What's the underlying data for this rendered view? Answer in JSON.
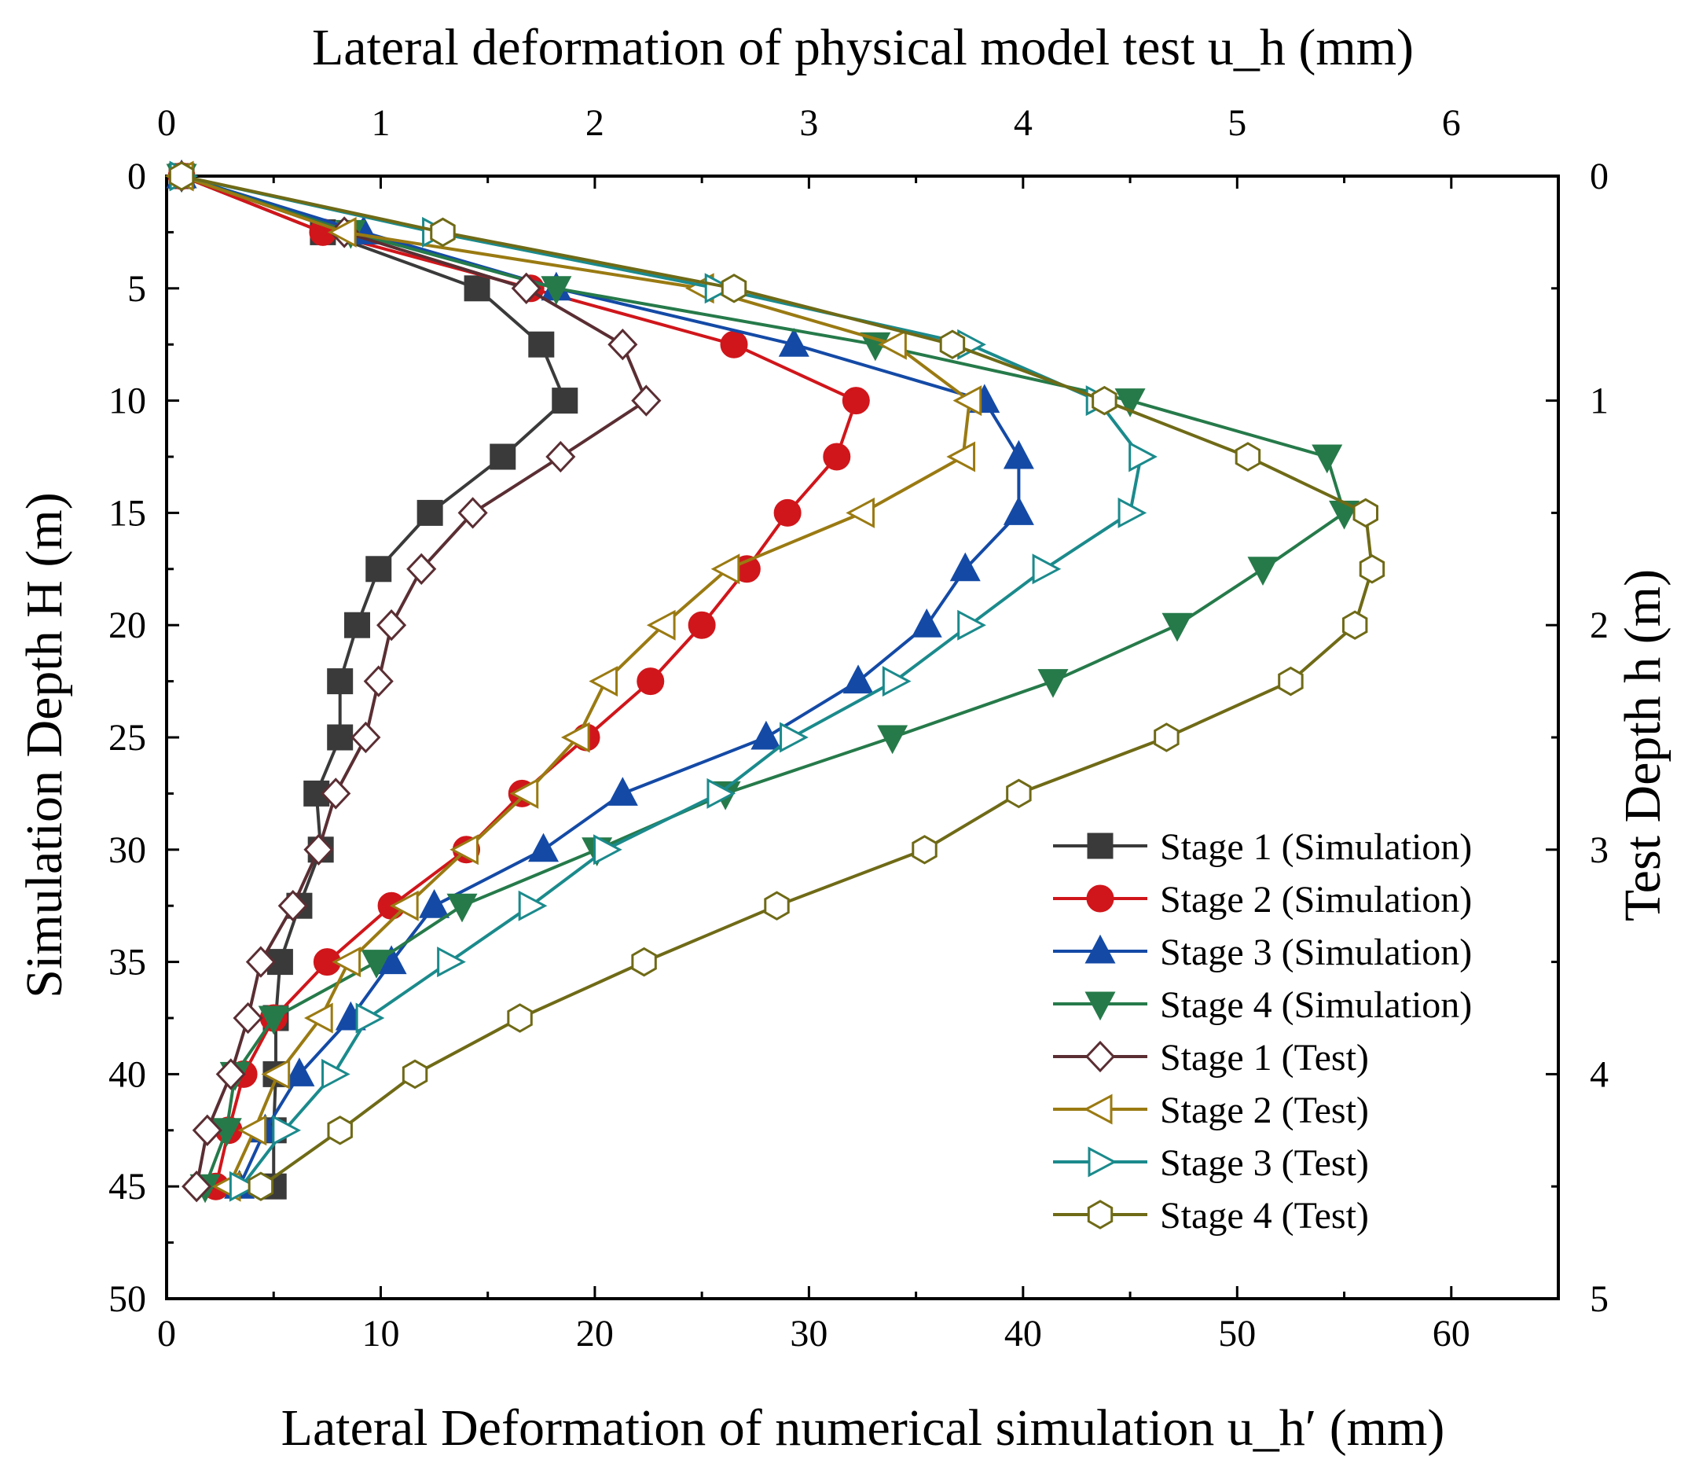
{
  "chart_data": {
    "type": "line",
    "axes": {
      "bottom": {
        "label": "Lateral Deformation of numerical simulation u_h′ (mm)",
        "range": [
          0,
          65
        ],
        "ticks": [
          "0",
          "10",
          "20",
          "30",
          "40",
          "50",
          "60"
        ]
      },
      "top": {
        "label": "Lateral deformation of physical model test u_h (mm)",
        "range": [
          0,
          6.5
        ],
        "ticks": [
          "0",
          "1",
          "2",
          "3",
          "4",
          "5",
          "6"
        ]
      },
      "left": {
        "label": "Simulation Depth H (m)",
        "range": [
          0,
          50
        ],
        "inverted": true,
        "ticks": [
          "0",
          "5",
          "10",
          "15",
          "20",
          "25",
          "30",
          "35",
          "40",
          "45",
          "50"
        ]
      },
      "right": {
        "label": "Test Depth h (m)",
        "range": [
          0,
          5
        ],
        "inverted": true,
        "ticks": [
          "0",
          "1",
          "2",
          "3",
          "4",
          "5"
        ]
      }
    },
    "legend_position": "bottom-right",
    "grid": false,
    "depths": [
      0,
      2.5,
      5,
      7.5,
      10,
      12.5,
      15,
      17.5,
      20,
      22.5,
      25,
      27.5,
      30,
      32.5,
      35,
      37.5,
      40,
      42.5,
      45
    ],
    "series": [
      {
        "name": "Stage 1 (Simulation)",
        "axis": "simulation",
        "color": "#3a3a3a",
        "marker": "square",
        "filled": true,
        "values": [
          0.7,
          7.3,
          14.5,
          17.5,
          18.6,
          15.7,
          12.3,
          9.9,
          8.9,
          8.1,
          8.1,
          7.0,
          7.2,
          6.2,
          5.3,
          5.1,
          5.1,
          5.0,
          5.0
        ]
      },
      {
        "name": "Stage 2 (Simulation)",
        "axis": "simulation",
        "color": "#d0161b",
        "marker": "circle",
        "filled": true,
        "values": [
          0.7,
          7.3,
          17.0,
          26.5,
          32.2,
          31.3,
          29.0,
          27.1,
          25.0,
          22.6,
          19.6,
          16.6,
          14.0,
          10.5,
          7.5,
          5.0,
          3.6,
          2.9,
          2.3
        ]
      },
      {
        "name": "Stage 3 (Simulation)",
        "axis": "simulation",
        "color": "#144aa6",
        "marker": "triangle-up",
        "filled": true,
        "values": [
          0.7,
          9.2,
          18.2,
          29.3,
          38.2,
          39.8,
          39.8,
          37.3,
          35.5,
          32.3,
          28.0,
          21.3,
          17.6,
          12.5,
          10.5,
          8.6,
          6.2,
          4.6,
          3.4
        ]
      },
      {
        "name": "Stage 4 (Simulation)",
        "axis": "simulation",
        "color": "#267a4a",
        "marker": "triangle-down",
        "filled": true,
        "values": [
          0.7,
          8.6,
          18.2,
          33.1,
          45.0,
          54.2,
          55.0,
          51.2,
          47.2,
          41.4,
          33.9,
          26.1,
          20.1,
          13.8,
          9.8,
          5.0,
          3.2,
          2.8,
          1.8
        ]
      },
      {
        "name": "Stage 1 (Test)",
        "axis": "test",
        "color": "#5a2e33",
        "marker": "diamond",
        "filled": false,
        "values": [
          0.07,
          0.83,
          1.68,
          2.13,
          2.24,
          1.84,
          1.43,
          1.19,
          1.05,
          0.99,
          0.93,
          0.79,
          0.71,
          0.59,
          0.44,
          0.38,
          0.3,
          0.19,
          0.14
        ]
      },
      {
        "name": "Stage 2 (Test)",
        "axis": "test",
        "color": "#9a7a12",
        "marker": "triangle-left",
        "filled": false,
        "values": [
          0.07,
          0.83,
          2.5,
          3.4,
          3.75,
          3.72,
          3.25,
          2.62,
          2.32,
          2.05,
          1.92,
          1.68,
          1.4,
          1.12,
          0.85,
          0.72,
          0.52,
          0.41,
          0.29
        ]
      },
      {
        "name": "Stage 3 (Test)",
        "axis": "test",
        "color": "#1b8a8c",
        "marker": "triangle-right",
        "filled": false,
        "values": [
          0.07,
          1.25,
          2.57,
          3.75,
          4.35,
          4.55,
          4.5,
          4.1,
          3.75,
          3.4,
          2.92,
          2.58,
          2.05,
          1.7,
          1.32,
          0.94,
          0.78,
          0.55,
          0.35
        ]
      },
      {
        "name": "Stage 4 (Test)",
        "axis": "test",
        "color": "#6f6a16",
        "marker": "hexagon",
        "filled": false,
        "values": [
          0.07,
          1.29,
          2.65,
          3.67,
          4.38,
          5.05,
          5.6,
          5.63,
          5.55,
          5.25,
          4.67,
          3.98,
          3.54,
          2.85,
          2.23,
          1.65,
          1.16,
          0.81,
          0.44
        ]
      }
    ]
  }
}
